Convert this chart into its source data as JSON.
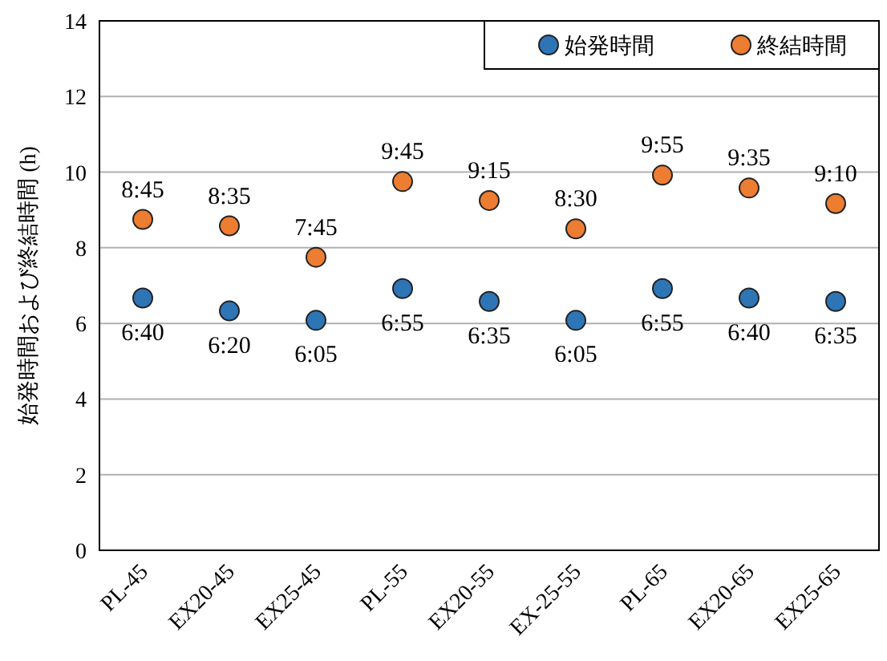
{
  "chart_data": {
    "type": "scatter",
    "ylabel": "始発時間および終結時間 (h)",
    "categories": [
      "PL-45",
      "EX20-45",
      "EX25-45",
      "PL-55",
      "EX20-55",
      "EX-25-55",
      "PL-65",
      "EX20-65",
      "EX25-65"
    ],
    "series": [
      {
        "name": "始発時間",
        "color": "#2e75b6",
        "values": [
          6.67,
          6.33,
          6.08,
          6.92,
          6.58,
          6.08,
          6.92,
          6.67,
          6.58
        ],
        "value_labels": [
          "6:40",
          "6:20",
          "6:05",
          "6:55",
          "6:35",
          "6:05",
          "6:55",
          "6:40",
          "6:35"
        ]
      },
      {
        "name": "終結時間",
        "color": "#ed7d31",
        "values": [
          8.75,
          8.58,
          7.75,
          9.75,
          9.25,
          8.5,
          9.92,
          9.58,
          9.17
        ],
        "value_labels": [
          "8:45",
          "8:35",
          "7:45",
          "9:45",
          "9:15",
          "8:30",
          "9:55",
          "9:35",
          "9:10"
        ]
      }
    ],
    "ylim": [
      0,
      14
    ],
    "yticks": [
      0,
      2,
      4,
      6,
      8,
      10,
      12,
      14
    ],
    "grid": "y",
    "legend": "top right",
    "marker": "circle"
  }
}
